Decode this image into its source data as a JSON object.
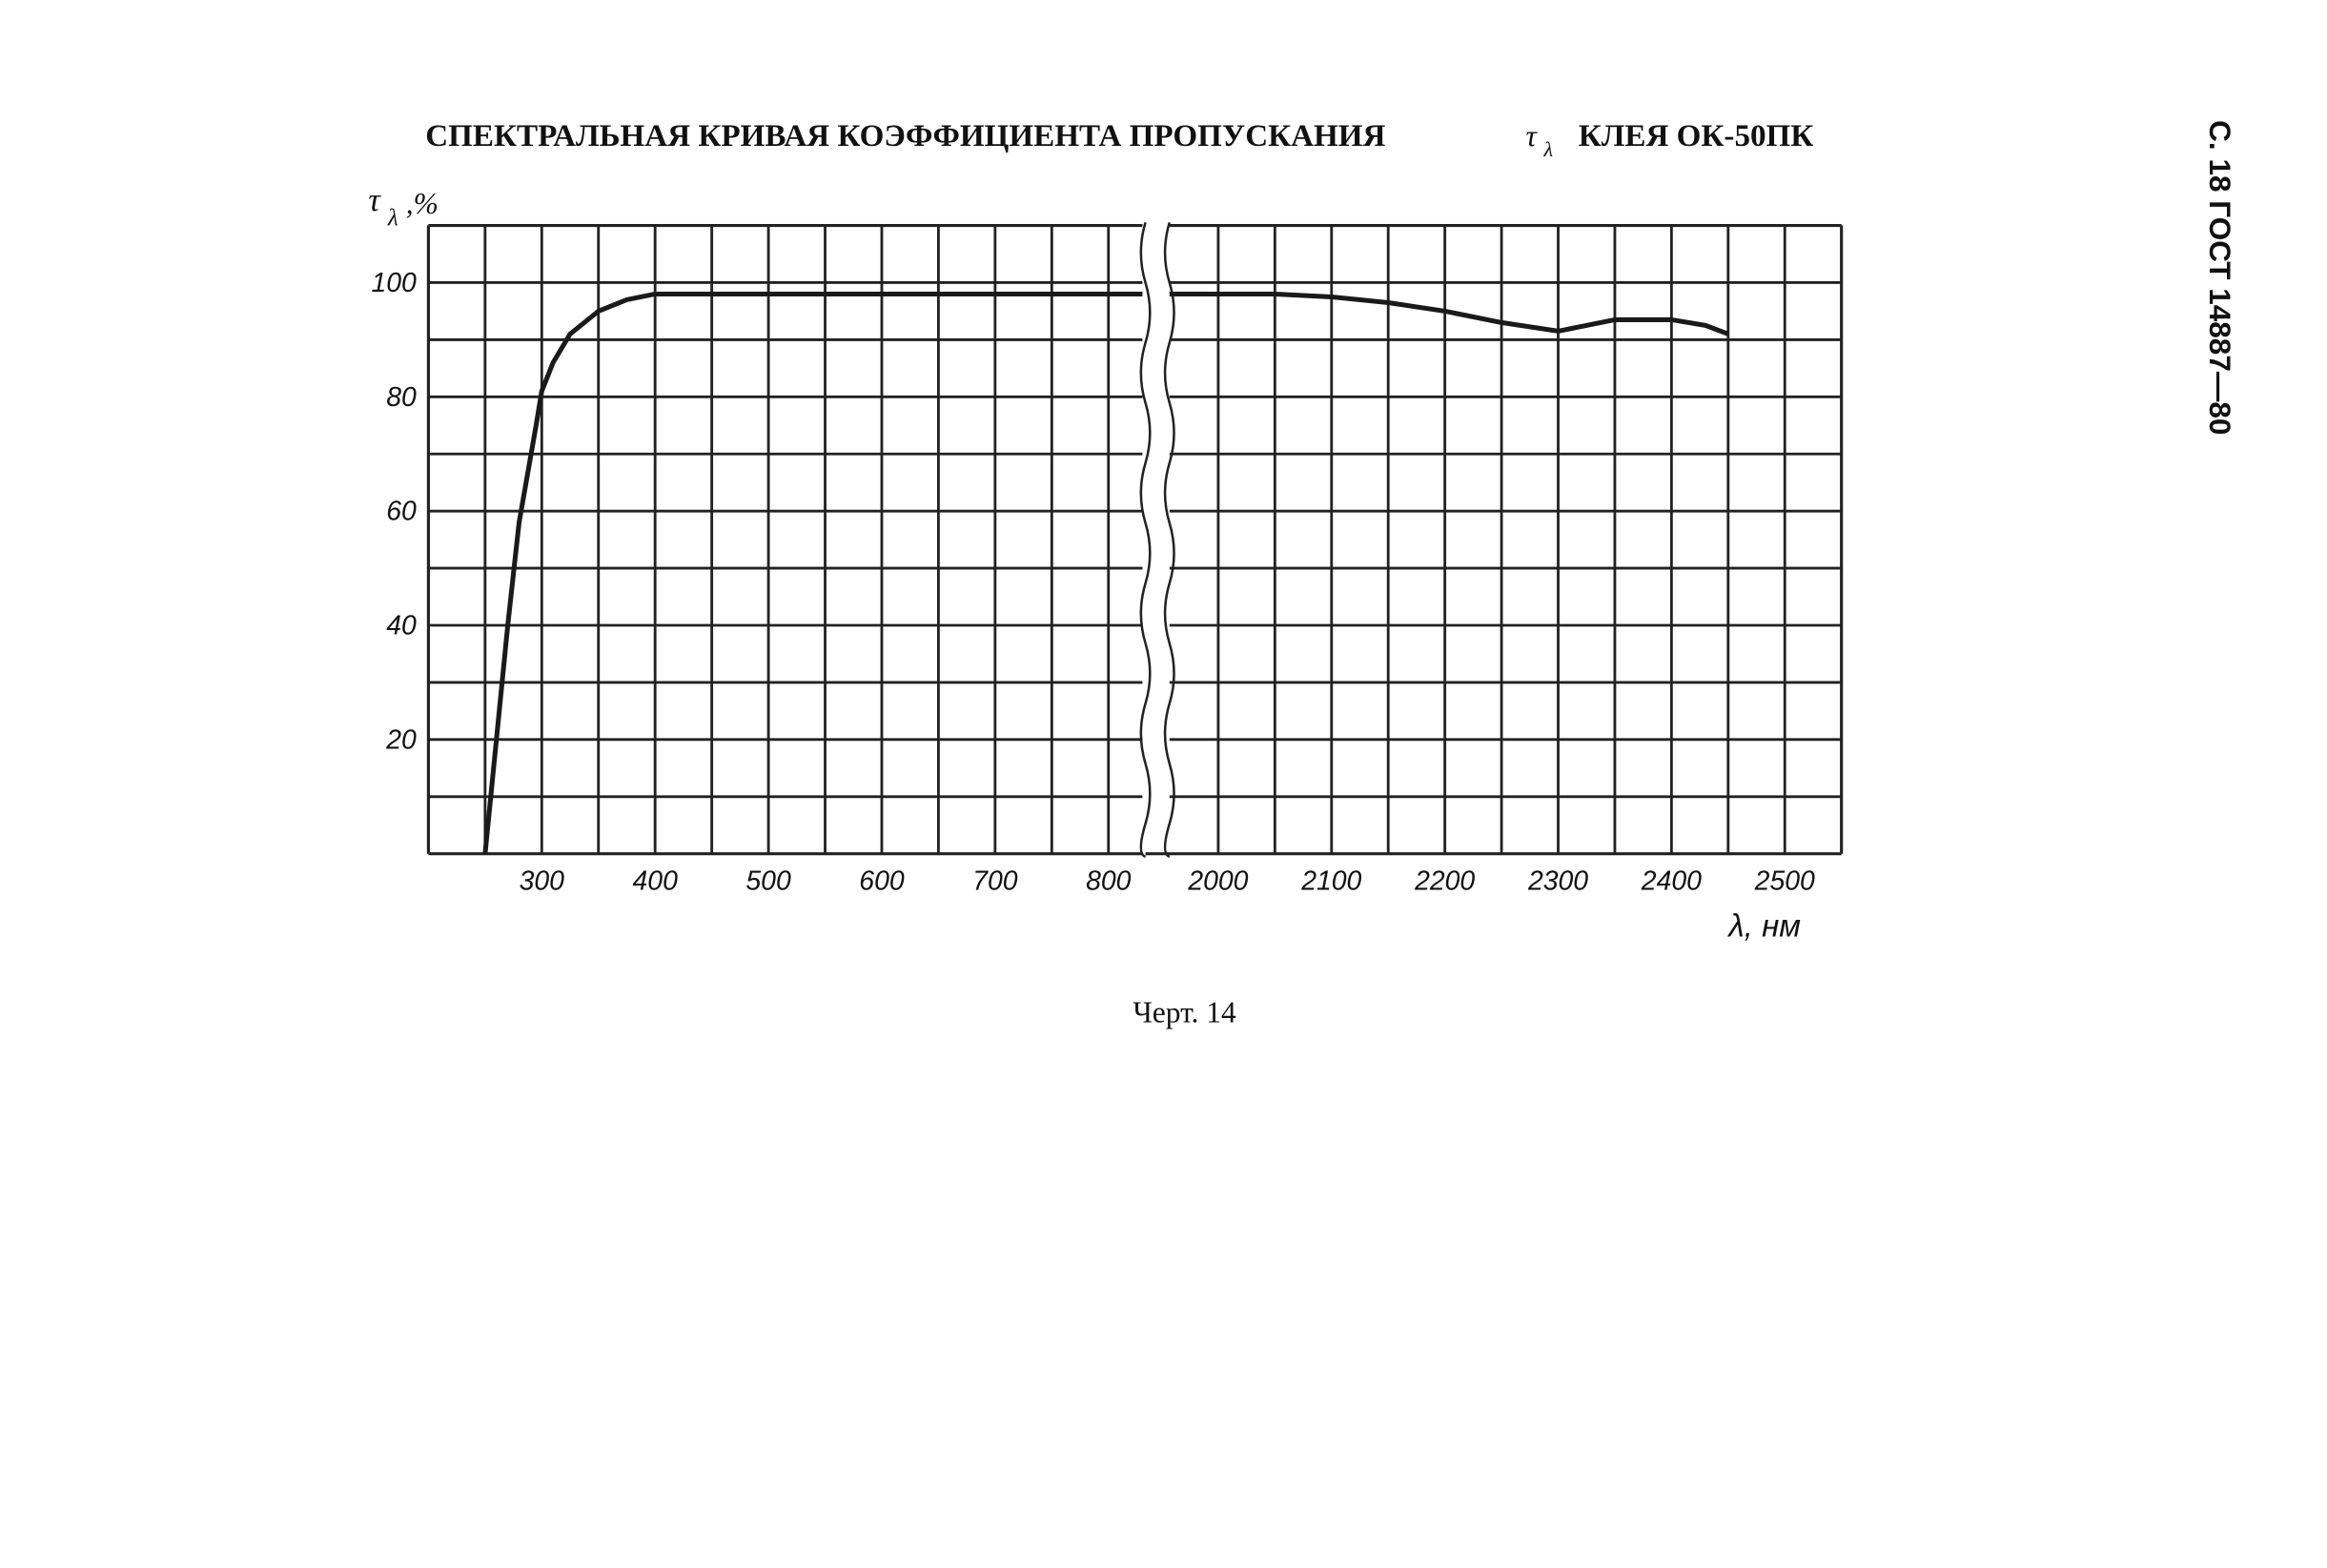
{
  "chart_data": [
    {
      "type": "line",
      "title": "СПЕКТРАЛЬНАЯ КРИВАЯ КОЭФФИЦИЕНТА ПРОПУСКАНИЯ",
      "title_symbol": "τ",
      "title_symbol_sub": "λ",
      "title_end": "КЛЕЯ ОК-50ПК",
      "y_label_symbol": "τ",
      "y_label_sub": "λ",
      "y_label_unit": ",%",
      "x": [
        250,
        260,
        270,
        280,
        295,
        300,
        310,
        325,
        350,
        375,
        400,
        500,
        600,
        700,
        800,
        830
      ],
      "series": [
        {
          "color": "#1a1a1a",
          "values": [
            0,
            20,
            40,
            58,
            75,
            81,
            86,
            91,
            95,
            97,
            98,
            98,
            98,
            98,
            98,
            98
          ]
        }
      ],
      "xlim": [
        200,
        830
      ],
      "xticks": [
        300,
        400,
        500,
        600,
        700,
        800
      ],
      "xgrid": [
        250,
        300,
        350,
        400,
        450,
        500,
        550,
        600,
        650,
        700,
        750,
        800
      ],
      "ylim": [
        0,
        110
      ],
      "yticks": [
        20,
        40,
        60,
        80,
        100
      ],
      "ygrid": [
        10,
        20,
        30,
        40,
        50,
        60,
        70,
        80,
        90,
        100
      ]
    },
    {
      "type": "line",
      "x_label": "λ, нм",
      "x": [
        1957,
        2000,
        2050,
        2100,
        2150,
        2200,
        2250,
        2300,
        2350,
        2400,
        2430,
        2450
      ],
      "series": [
        {
          "color": "#1a1a1a",
          "values": [
            98,
            98,
            98,
            97.5,
            96.5,
            95,
            93,
            91.5,
            93.5,
            93.5,
            92.5,
            91
          ]
        }
      ],
      "xlim": [
        1957,
        2550
      ],
      "xticks": [
        2000,
        2100,
        2200,
        2300,
        2400,
        2500
      ],
      "xgrid": [
        2000,
        2050,
        2100,
        2150,
        2200,
        2250,
        2300,
        2350,
        2400,
        2450,
        2500
      ],
      "ylim": [
        0,
        110
      ],
      "ygrid": [
        10,
        20,
        30,
        40,
        50,
        60,
        70,
        80,
        90,
        100
      ]
    }
  ],
  "caption": "Черт. 14",
  "page_header": "С. 18 ГОСТ 14887—80"
}
